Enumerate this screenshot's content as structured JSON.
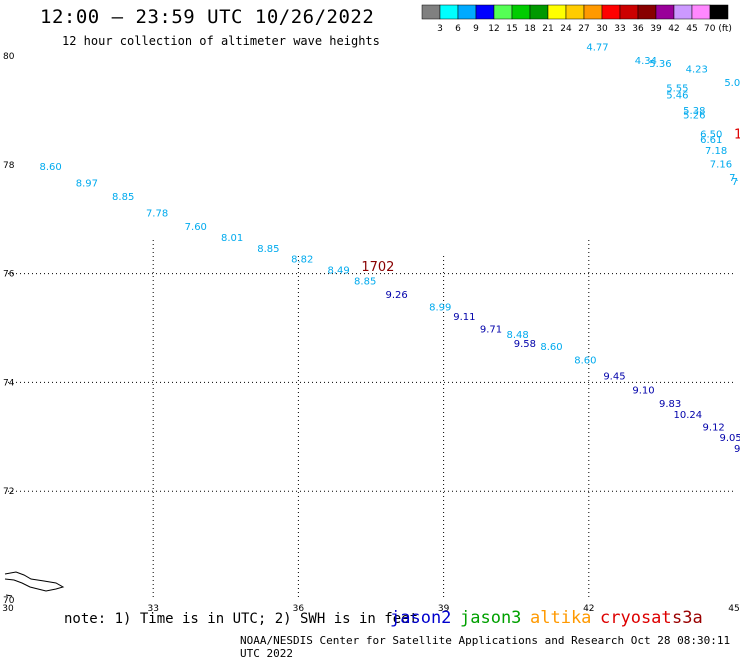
{
  "header": {
    "title": "12:00 – 23:59 UTC 10/26/2022",
    "subtitle": "12 hour collection of altimeter wave heights"
  },
  "footer": {
    "note": "note: 1) Time is in UTC; 2) SWH is in feet",
    "credit": "NOAA/NESDIS Center for Satellite Applications and Research   Oct 28 08:30:11 UTC 2022"
  },
  "satellites": [
    {
      "name": "jason2",
      "color": "#0000cc"
    },
    {
      "name": "jason3",
      "color": "#00a000"
    },
    {
      "name": "altika",
      "color": "#ff9900"
    },
    {
      "name": "cryosat",
      "color": "#dd0000"
    },
    {
      "name": "s3a",
      "color": "#990000"
    }
  ],
  "chart_data": {
    "type": "scatter",
    "xlim": [
      30,
      45
    ],
    "ylim": [
      70,
      80
    ],
    "x_ticks": [
      "30",
      "33",
      "36",
      "39",
      "42",
      "45"
    ],
    "y_ticks": [
      "70",
      "72",
      "74",
      "76",
      "78",
      "80"
    ],
    "grid": "dotted",
    "colorbar": {
      "labels": [
        "3",
        "6",
        "9",
        "12",
        "15",
        "18",
        "21",
        "24",
        "27",
        "30",
        "33",
        "36",
        "39",
        "42",
        "45",
        "70 (ft)"
      ],
      "colors": [
        "#808080",
        "#00ffff",
        "#00aaff",
        "#0000ff",
        "#55ff55",
        "#00cc00",
        "#009900",
        "#ffff00",
        "#ffcc00",
        "#ff9900",
        "#ff0000",
        "#cc0000",
        "#880000",
        "#990099",
        "#cc99ff",
        "#ff88ff",
        "#000000"
      ]
    },
    "series": [
      {
        "name": "jason3",
        "color": "#00aaee",
        "points": [
          {
            "x": 30.65,
            "y": 77.9,
            "label": "8.60"
          },
          {
            "x": 31.4,
            "y": 77.6,
            "label": "8.97"
          },
          {
            "x": 32.15,
            "y": 77.35,
            "label": "8.85"
          },
          {
            "x": 32.85,
            "y": 77.05,
            "label": "7.78"
          },
          {
            "x": 33.65,
            "y": 76.8,
            "label": "7.60"
          },
          {
            "x": 34.4,
            "y": 76.6,
            "label": "8.01"
          },
          {
            "x": 35.15,
            "y": 76.4,
            "label": "8.85"
          },
          {
            "x": 35.85,
            "y": 76.2,
            "label": "8.82"
          },
          {
            "x": 36.6,
            "y": 76.0,
            "label": "8.49"
          },
          {
            "x": 37.15,
            "y": 75.8,
            "label": "8.85"
          },
          {
            "x": 38.7,
            "y": 75.32,
            "label": "8.99"
          },
          {
            "x": 40.3,
            "y": 74.82,
            "label": "8.48"
          },
          {
            "x": 41.0,
            "y": 74.6,
            "label": "8.60"
          },
          {
            "x": 41.7,
            "y": 74.35,
            "label": "8.60"
          },
          {
            "x": 41.95,
            "y": 80.1,
            "label": "4.77"
          },
          {
            "x": 42.95,
            "y": 79.85,
            "label": "4.34"
          },
          {
            "x": 43.25,
            "y": 79.8,
            "label": "5.36"
          },
          {
            "x": 44.0,
            "y": 79.7,
            "label": "4.23"
          },
          {
            "x": 44.8,
            "y": 79.45,
            "label": "5.0"
          },
          {
            "x": 43.6,
            "y": 79.35,
            "label": "5.55"
          },
          {
            "x": 43.6,
            "y": 79.22,
            "label": "5.46"
          },
          {
            "x": 43.95,
            "y": 78.93,
            "label": "5.38"
          },
          {
            "x": 43.95,
            "y": 78.85,
            "label": "5.26"
          },
          {
            "x": 44.3,
            "y": 78.5,
            "label": "6.50"
          },
          {
            "x": 44.3,
            "y": 78.4,
            "label": "6.61"
          },
          {
            "x": 44.4,
            "y": 78.2,
            "label": "7.18"
          },
          {
            "x": 44.5,
            "y": 77.95,
            "label": "7.16"
          },
          {
            "x": 44.9,
            "y": 77.7,
            "label": "7."
          },
          {
            "x": 44.95,
            "y": 77.63,
            "label": "7"
          }
        ]
      },
      {
        "name": "jason2",
        "color": "#0000aa",
        "points": [
          {
            "x": 37.8,
            "y": 75.55,
            "label": "9.26"
          },
          {
            "x": 39.2,
            "y": 75.15,
            "label": "9.11"
          },
          {
            "x": 39.75,
            "y": 74.92,
            "label": "9.71"
          },
          {
            "x": 40.45,
            "y": 74.65,
            "label": "9.58"
          },
          {
            "x": 42.3,
            "y": 74.05,
            "label": "9.45"
          },
          {
            "x": 42.9,
            "y": 73.8,
            "label": "9.10"
          },
          {
            "x": 43.45,
            "y": 73.55,
            "label": "9.83"
          },
          {
            "x": 43.75,
            "y": 73.35,
            "label": "10.24"
          },
          {
            "x": 44.35,
            "y": 73.12,
            "label": "9.12"
          },
          {
            "x": 44.7,
            "y": 72.92,
            "label": "9.05"
          },
          {
            "x": 45.0,
            "y": 72.72,
            "label": "9"
          }
        ]
      },
      {
        "name": "s3a",
        "color": "#880000",
        "points": [
          {
            "x": 37.3,
            "y": 76.05,
            "label": "1702"
          }
        ]
      },
      {
        "name": "cryosat",
        "color": "#dd0000",
        "points": [
          {
            "x": 45.0,
            "y": 78.48,
            "label": "1"
          }
        ]
      }
    ]
  }
}
